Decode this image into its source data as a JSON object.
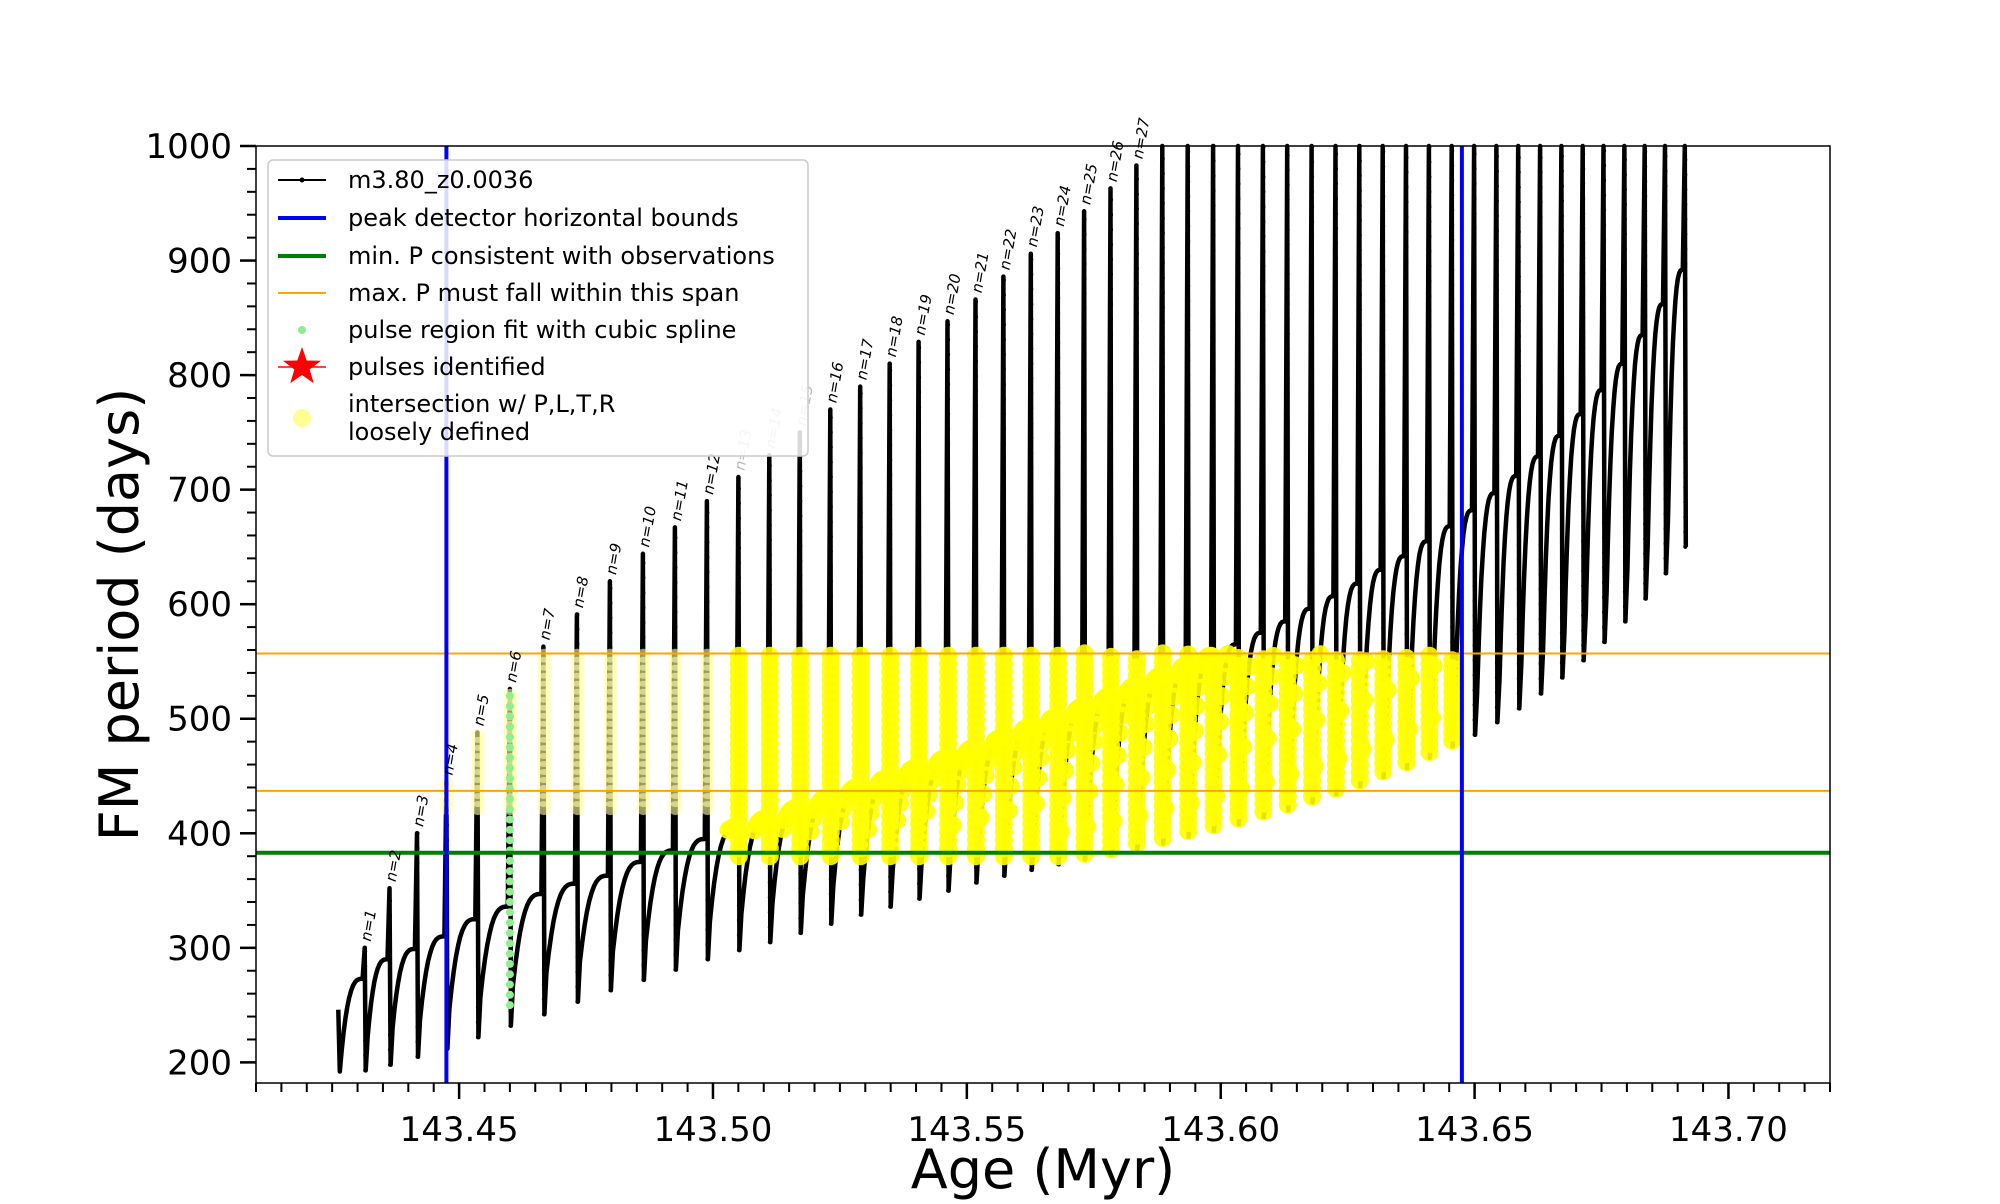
{
  "chart_data": {
    "type": "line",
    "title": "",
    "xlabel": "Age (Myr)",
    "ylabel": "FM period (days)",
    "xlim": [
      143.41,
      143.72
    ],
    "ylim": [
      182,
      1000
    ],
    "xticks": [
      143.45,
      143.5,
      143.55,
      143.6,
      143.65,
      143.7
    ],
    "xtick_labels": [
      "143.45",
      "143.50",
      "143.55",
      "143.60",
      "143.65",
      "143.70"
    ],
    "x_minor_step": 0.005,
    "yticks": [
      200,
      300,
      400,
      500,
      600,
      700,
      800,
      900,
      1000
    ],
    "ytick_labels": [
      "200",
      "300",
      "400",
      "500",
      "600",
      "700",
      "800",
      "900",
      "1000"
    ],
    "y_minor_step": 20,
    "grid": false,
    "legend_position": "top-left",
    "legend": [
      {
        "label": "m3.80_z0.0036",
        "marker": "line-dot",
        "color": "#000000"
      },
      {
        "label": "peak detector horizontal bounds",
        "marker": "line",
        "color": "#0000ff"
      },
      {
        "label": "min. P consistent with observations",
        "marker": "line",
        "color": "#008000"
      },
      {
        "label": "max. P must fall within this span",
        "marker": "thin-line",
        "color": "#ffa500"
      },
      {
        "label": "pulse region fit with cubic spline",
        "marker": "dot",
        "color": "#90ee90"
      },
      {
        "label": "pulses identified",
        "marker": "star",
        "color": "#ff0000"
      },
      {
        "label": "intersection w/ P,L,T,R\nloosely defined",
        "marker": "circle",
        "color": "#ffff66"
      }
    ],
    "reference_lines": {
      "peak_detector_bounds_x": [
        143.4475,
        143.6475
      ],
      "min_period_y": 383,
      "max_period_span_y": [
        437,
        557
      ]
    },
    "series_style": {
      "track_color": "#000000",
      "spline_color": "#90ee90",
      "intersection_color": "#ffff00",
      "faint_intersection_color": "#ffffa0"
    },
    "pulses": [
      {
        "label": "n=1",
        "age": 143.4314,
        "peak": 300,
        "floor": 193,
        "plateau": 273
      },
      {
        "label": "n=2",
        "age": 143.4363,
        "peak": 352,
        "floor": 198,
        "plateau": 290
      },
      {
        "label": "n=3",
        "age": 143.4417,
        "peak": 400,
        "floor": 205,
        "plateau": 299
      },
      {
        "label": "n=4",
        "age": 143.4475,
        "peak": 445,
        "floor": 212,
        "plateau": 310
      },
      {
        "label": "n=5",
        "age": 143.4536,
        "peak": 488,
        "floor": 222,
        "plateau": 325
      },
      {
        "label": "n=6",
        "age": 143.46,
        "peak": 526,
        "floor": 232,
        "plateau": 336
      },
      {
        "label": "n=7",
        "age": 143.4666,
        "peak": 563,
        "floor": 242,
        "plateau": 347
      },
      {
        "label": "n=8",
        "age": 143.4732,
        "peak": 591,
        "floor": 253,
        "plateau": 356
      },
      {
        "label": "n=9",
        "age": 143.4797,
        "peak": 620,
        "floor": 263,
        "plateau": 363
      },
      {
        "label": "n=10",
        "age": 143.4862,
        "peak": 644,
        "floor": 272,
        "plateau": 375
      },
      {
        "label": "n=11",
        "age": 143.4925,
        "peak": 667,
        "floor": 281,
        "plateau": 385
      },
      {
        "label": "n=12",
        "age": 143.4988,
        "peak": 690,
        "floor": 290,
        "plateau": 395
      },
      {
        "label": "n=13",
        "age": 143.505,
        "peak": 711,
        "floor": 298,
        "plateau": 405
      },
      {
        "label": "n=14",
        "age": 143.5111,
        "peak": 730,
        "floor": 305,
        "plateau": 413
      },
      {
        "label": "n=15",
        "age": 143.5171,
        "peak": 750,
        "floor": 313,
        "plateau": 422
      },
      {
        "label": "n=16",
        "age": 143.5231,
        "peak": 770,
        "floor": 321,
        "plateau": 431
      },
      {
        "label": "n=17",
        "age": 143.529,
        "peak": 790,
        "floor": 329,
        "plateau": 440
      },
      {
        "label": "n=18",
        "age": 143.5348,
        "peak": 810,
        "floor": 336,
        "plateau": 448
      },
      {
        "label": "n=19",
        "age": 143.5405,
        "peak": 829,
        "floor": 343,
        "plateau": 457
      },
      {
        "label": "n=20",
        "age": 143.5462,
        "peak": 847,
        "floor": 350,
        "plateau": 465
      },
      {
        "label": "n=21",
        "age": 143.5517,
        "peak": 866,
        "floor": 357,
        "plateau": 474
      },
      {
        "label": "n=22",
        "age": 143.5572,
        "peak": 886,
        "floor": 363,
        "plateau": 483
      },
      {
        "label": "n=23",
        "age": 143.5626,
        "peak": 906,
        "floor": 368,
        "plateau": 492
      },
      {
        "label": "n=24",
        "age": 143.5679,
        "peak": 924,
        "floor": 373,
        "plateau": 501
      },
      {
        "label": "n=25",
        "age": 143.5731,
        "peak": 943,
        "floor": 377,
        "plateau": 510
      },
      {
        "label": "n=26",
        "age": 143.5783,
        "peak": 963,
        "floor": 381,
        "plateau": 519
      },
      {
        "label": "n=27",
        "age": 143.5834,
        "peak": 983,
        "floor": 386,
        "plateau": 528
      },
      {
        "label": "",
        "age": 143.5885,
        "peak": 1000,
        "floor": 391,
        "plateau": 537
      },
      {
        "label": "",
        "age": 143.5935,
        "peak": 1000,
        "floor": 397,
        "plateau": 546
      },
      {
        "label": "",
        "age": 143.5985,
        "peak": 1000,
        "floor": 402,
        "plateau": 555
      },
      {
        "label": "",
        "age": 143.6034,
        "peak": 1000,
        "floor": 408,
        "plateau": 565
      },
      {
        "label": "",
        "age": 143.6083,
        "peak": 1000,
        "floor": 414,
        "plateau": 575
      },
      {
        "label": "",
        "age": 143.6131,
        "peak": 1000,
        "floor": 420,
        "plateau": 585
      },
      {
        "label": "",
        "age": 143.6179,
        "peak": 1000,
        "floor": 427,
        "plateau": 596
      },
      {
        "label": "",
        "age": 143.6226,
        "peak": 1000,
        "floor": 434,
        "plateau": 607
      },
      {
        "label": "",
        "age": 143.6273,
        "peak": 1000,
        "floor": 441,
        "plateau": 618
      },
      {
        "label": "",
        "age": 143.6319,
        "peak": 1000,
        "floor": 449,
        "plateau": 630
      },
      {
        "label": "",
        "age": 143.6365,
        "peak": 1000,
        "floor": 457,
        "plateau": 642
      },
      {
        "label": "",
        "age": 143.641,
        "peak": 1000,
        "floor": 466,
        "plateau": 655
      },
      {
        "label": "",
        "age": 143.6455,
        "peak": 1000,
        "floor": 476,
        "plateau": 668
      },
      {
        "label": "",
        "age": 143.6499,
        "peak": 1000,
        "floor": 486,
        "plateau": 682
      },
      {
        "label": "",
        "age": 143.6543,
        "peak": 1000,
        "floor": 497,
        "plateau": 697
      },
      {
        "label": "",
        "age": 143.6586,
        "peak": 1000,
        "floor": 509,
        "plateau": 712
      },
      {
        "label": "",
        "age": 143.6629,
        "peak": 1000,
        "floor": 522,
        "plateau": 729
      },
      {
        "label": "",
        "age": 143.6671,
        "peak": 1000,
        "floor": 536,
        "plateau": 747
      },
      {
        "label": "",
        "age": 143.6713,
        "peak": 1000,
        "floor": 551,
        "plateau": 766
      },
      {
        "label": "",
        "age": 143.6754,
        "peak": 1000,
        "floor": 567,
        "plateau": 787
      },
      {
        "label": "",
        "age": 143.6795,
        "peak": 1000,
        "floor": 585,
        "plateau": 810
      },
      {
        "label": "",
        "age": 143.6835,
        "peak": 1000,
        "floor": 605,
        "plateau": 835
      },
      {
        "label": "",
        "age": 143.6875,
        "peak": 1000,
        "floor": 627,
        "plateau": 862
      },
      {
        "label": "",
        "age": 143.6914,
        "peak": 1000,
        "floor": 650,
        "plateau": 892
      }
    ]
  }
}
